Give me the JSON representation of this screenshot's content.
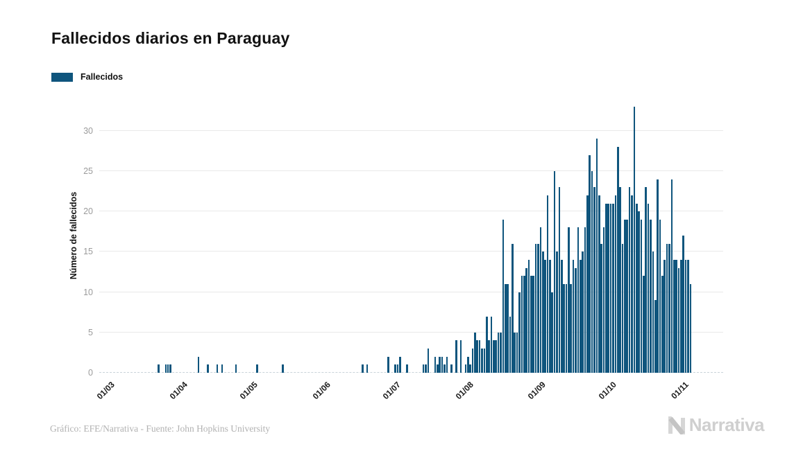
{
  "page": {
    "title": "Fallecidos diarios en Paraguay",
    "legend": {
      "label": "Fallecidos",
      "swatch_color": "#0F557D"
    },
    "footer": {
      "credit": "Gráfico: EFE/Narrativa - Fuente: John Hopkins University",
      "brand": "Narrativa"
    }
  },
  "chart_data": {
    "type": "bar",
    "title": "Fallecidos diarios en Paraguay",
    "series_name": "Fallecidos",
    "xlabel": "",
    "ylabel": "Número de fallecidos",
    "yticks": [
      0,
      5,
      10,
      15,
      20,
      25,
      30
    ],
    "ylim": [
      0,
      33.5
    ],
    "grid": "horizontal",
    "legend_position": "top-left",
    "bar_color": "#0F557D",
    "x_start_date": "26/02/2020",
    "x_end_date": "04/11/2020",
    "x_tick_labels": [
      "01/03",
      "01/04",
      "01/05",
      "01/06",
      "01/07",
      "01/08",
      "01/09",
      "01/10",
      "01/11"
    ],
    "x_tick_day_offsets": [
      4,
      35,
      65,
      96,
      126,
      157,
      188,
      218,
      249
    ],
    "values": [
      0,
      0,
      0,
      0,
      0,
      0,
      0,
      0,
      0,
      0,
      0,
      0,
      0,
      0,
      0,
      0,
      0,
      0,
      0,
      0,
      0,
      0,
      0,
      0,
      0,
      1,
      0,
      0,
      1,
      1,
      1,
      0,
      0,
      0,
      0,
      0,
      0,
      0,
      0,
      0,
      0,
      0,
      2,
      0,
      0,
      0,
      1,
      0,
      0,
      0,
      1,
      0,
      1,
      0,
      0,
      0,
      0,
      0,
      1,
      0,
      0,
      0,
      0,
      0,
      0,
      0,
      0,
      1,
      0,
      0,
      0,
      0,
      0,
      0,
      0,
      0,
      0,
      0,
      1,
      0,
      0,
      0,
      0,
      0,
      0,
      0,
      0,
      0,
      0,
      0,
      0,
      0,
      0,
      0,
      0,
      0,
      0,
      0,
      0,
      0,
      0,
      0,
      0,
      0,
      0,
      0,
      0,
      0,
      0,
      0,
      0,
      0,
      1,
      0,
      1,
      0,
      0,
      0,
      0,
      0,
      0,
      0,
      0,
      2,
      0,
      0,
      1,
      1,
      2,
      0,
      0,
      1,
      0,
      0,
      0,
      0,
      0,
      0,
      1,
      1,
      3,
      0,
      0,
      2,
      1,
      2,
      2,
      1,
      2,
      0,
      1,
      0,
      4,
      0,
      4,
      0,
      1,
      2,
      1,
      3,
      5,
      4,
      4,
      3,
      3,
      7,
      4,
      7,
      4,
      4,
      5,
      5,
      19,
      11,
      11,
      7,
      16,
      5,
      5,
      10,
      12,
      12,
      13,
      14,
      12,
      12,
      16,
      16,
      18,
      15,
      14,
      22,
      14,
      10,
      25,
      15,
      23,
      14,
      11,
      11,
      18,
      11,
      14,
      13,
      18,
      14,
      15,
      18,
      22,
      27,
      25,
      23,
      29,
      22,
      16,
      18,
      21,
      21,
      21,
      21,
      22,
      28,
      23,
      16,
      19,
      19,
      23,
      22,
      33,
      21,
      20,
      19,
      12,
      23,
      21,
      19,
      15,
      9,
      24,
      19,
      12,
      14,
      16,
      16,
      24,
      14,
      14,
      13,
      14,
      17,
      14,
      14,
      11
    ]
  }
}
